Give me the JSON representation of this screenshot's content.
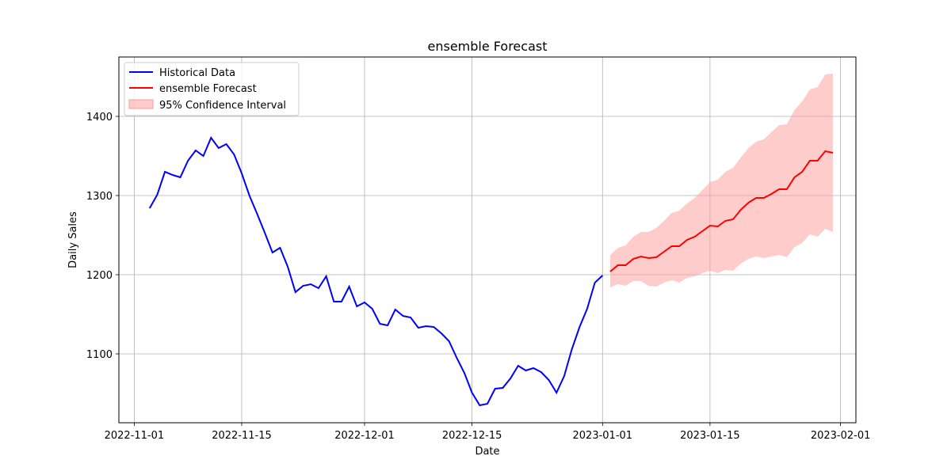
{
  "chart_data": {
    "type": "line",
    "title": "ensemble Forecast",
    "xlabel": "Date",
    "ylabel": "Daily Sales",
    "x_ticks": [
      "2022-11-01",
      "2022-11-15",
      "2022-12-01",
      "2022-12-15",
      "2023-01-01",
      "2023-01-15",
      "2023-02-01"
    ],
    "y_ticks": [
      1100,
      1200,
      1300,
      1400
    ],
    "xlim": [
      "2022-10-30",
      "2023-02-03"
    ],
    "ylim": [
      1013,
      1475
    ],
    "grid": true,
    "legend_position": "top-left",
    "colors": {
      "historical": "#0000ff",
      "forecast": "#ff0000",
      "confidence": "#ff9999"
    },
    "series": [
      {
        "name": "Historical Data",
        "x": [
          "2022-11-03",
          "2022-11-04",
          "2022-11-05",
          "2022-11-06",
          "2022-11-07",
          "2022-11-08",
          "2022-11-09",
          "2022-11-10",
          "2022-11-11",
          "2022-11-12",
          "2022-11-13",
          "2022-11-14",
          "2022-11-15",
          "2022-11-16",
          "2022-11-17",
          "2022-11-18",
          "2022-11-19",
          "2022-11-20",
          "2022-11-21",
          "2022-11-22",
          "2022-11-23",
          "2022-11-24",
          "2022-11-25",
          "2022-11-26",
          "2022-11-27",
          "2022-11-28",
          "2022-11-29",
          "2022-11-30",
          "2022-12-01",
          "2022-12-02",
          "2022-12-03",
          "2022-12-04",
          "2022-12-05",
          "2022-12-06",
          "2022-12-07",
          "2022-12-08",
          "2022-12-09",
          "2022-12-10",
          "2022-12-11",
          "2022-12-12",
          "2022-12-13",
          "2022-12-14",
          "2022-12-15",
          "2022-12-16",
          "2022-12-17",
          "2022-12-18",
          "2022-12-19",
          "2022-12-20",
          "2022-12-21",
          "2022-12-22",
          "2022-12-23",
          "2022-12-24",
          "2022-12-25",
          "2022-12-26",
          "2022-12-27",
          "2022-12-28",
          "2022-12-29",
          "2022-12-30",
          "2022-12-31",
          "2023-01-01"
        ],
        "values": [
          1284,
          1301,
          1330,
          1326,
          1323,
          1344,
          1357,
          1350,
          1373,
          1360,
          1365,
          1352,
          1328,
          1300,
          1277,
          1253,
          1228,
          1234,
          1210,
          1178,
          1186,
          1188,
          1183,
          1198,
          1166,
          1166,
          1185,
          1160,
          1165,
          1157,
          1138,
          1136,
          1156,
          1148,
          1146,
          1133,
          1135,
          1134,
          1126,
          1116,
          1095,
          1076,
          1051,
          1035,
          1037,
          1056,
          1057,
          1069,
          1085,
          1079,
          1082,
          1077,
          1067,
          1051,
          1072,
          1106,
          1134,
          1157,
          1190,
          1199
        ]
      },
      {
        "name": "ensemble Forecast",
        "x": [
          "2023-01-02",
          "2023-01-03",
          "2023-01-04",
          "2023-01-05",
          "2023-01-06",
          "2023-01-07",
          "2023-01-08",
          "2023-01-09",
          "2023-01-10",
          "2023-01-11",
          "2023-01-12",
          "2023-01-13",
          "2023-01-14",
          "2023-01-15",
          "2023-01-16",
          "2023-01-17",
          "2023-01-18",
          "2023-01-19",
          "2023-01-20",
          "2023-01-21",
          "2023-01-22",
          "2023-01-23",
          "2023-01-24",
          "2023-01-25",
          "2023-01-26",
          "2023-01-27",
          "2023-01-28",
          "2023-01-29",
          "2023-01-30",
          "2023-01-31"
        ],
        "values": [
          1204,
          1212,
          1212,
          1220,
          1223,
          1221,
          1222,
          1229,
          1236,
          1236,
          1244,
          1248,
          1255,
          1262,
          1261,
          1268,
          1270,
          1282,
          1291,
          1297,
          1297,
          1302,
          1308,
          1308,
          1323,
          1330,
          1344,
          1344,
          1356,
          1354
        ]
      }
    ],
    "confidence_interval": {
      "name": "95% Confidence Interval",
      "lower": [
        1184,
        1188,
        1186,
        1192,
        1192,
        1186,
        1185,
        1190,
        1193,
        1190,
        1196,
        1198,
        1202,
        1205,
        1202,
        1206,
        1205,
        1214,
        1220,
        1223,
        1221,
        1223,
        1225,
        1222,
        1235,
        1240,
        1251,
        1248,
        1258,
        1254
      ],
      "upper": [
        1225,
        1234,
        1237,
        1248,
        1254,
        1254,
        1259,
        1268,
        1278,
        1281,
        1290,
        1297,
        1307,
        1317,
        1320,
        1330,
        1335,
        1348,
        1360,
        1368,
        1371,
        1380,
        1389,
        1390,
        1408,
        1419,
        1434,
        1437,
        1453,
        1454
      ]
    }
  }
}
